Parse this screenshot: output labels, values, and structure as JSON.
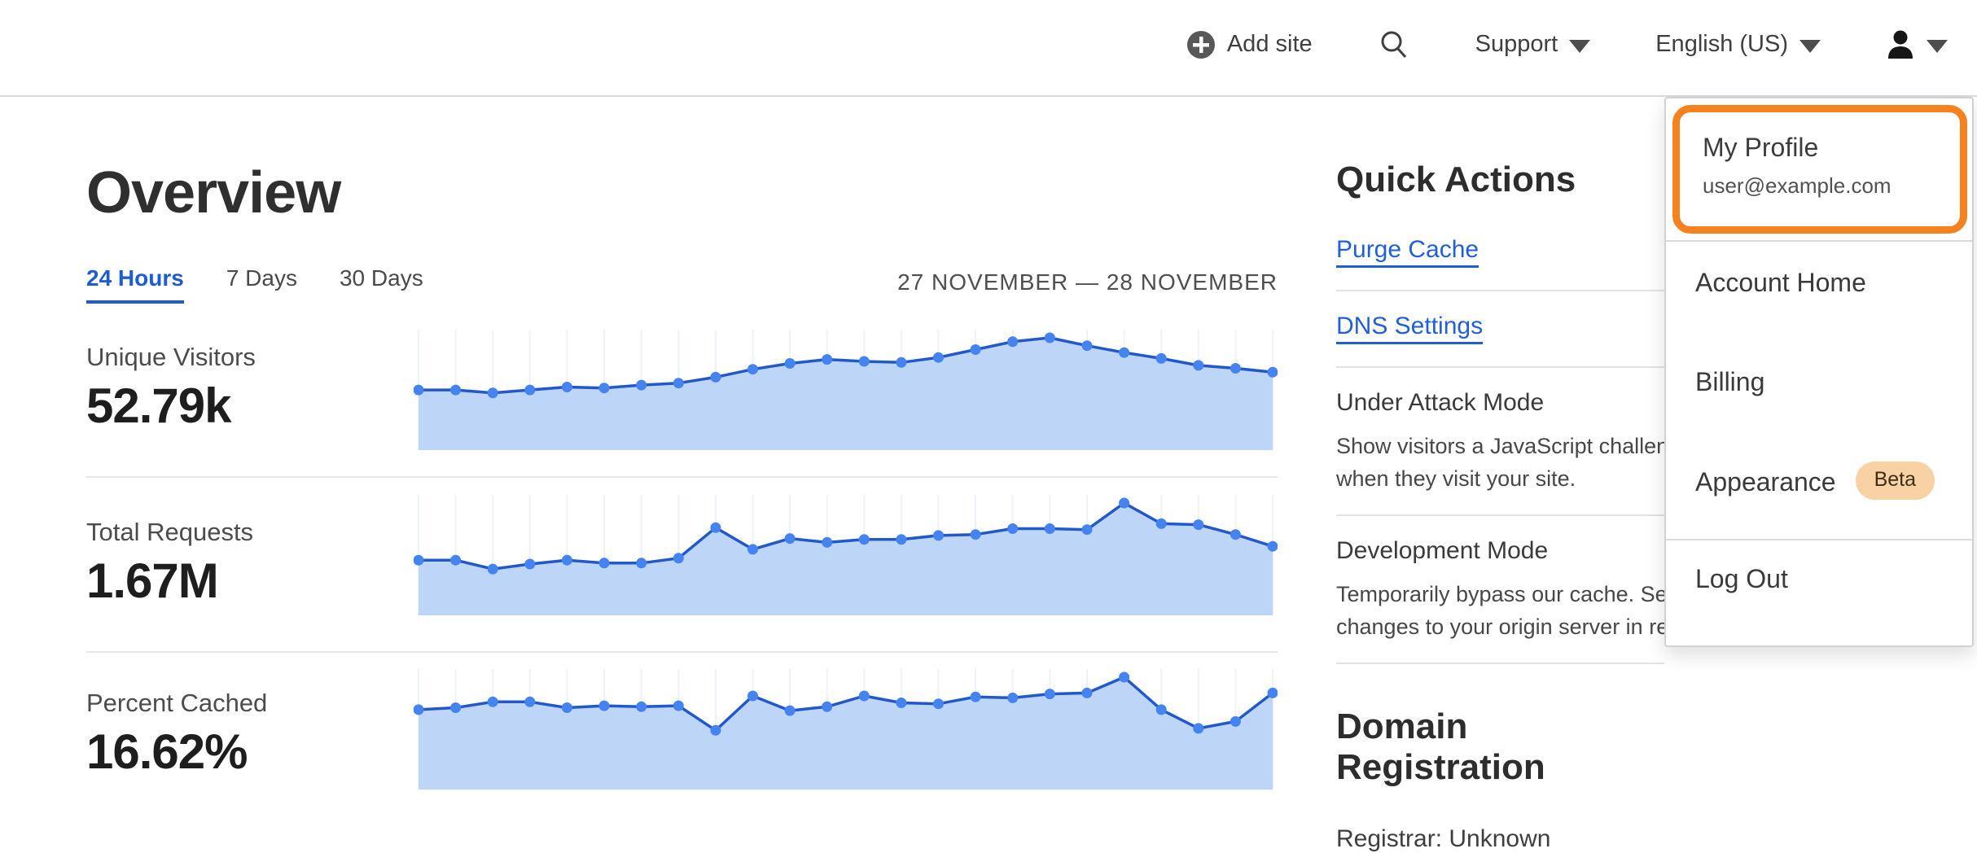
{
  "nav": {
    "add_site_label": "Add site",
    "support_label": "Support",
    "language_label": "English (US)"
  },
  "overview": {
    "title": "Overview",
    "tabs": [
      {
        "label": "24 Hours",
        "active": true
      },
      {
        "label": "7 Days",
        "active": false
      },
      {
        "label": "30 Days",
        "active": false
      }
    ],
    "date_range": "27 NOVEMBER — 28 NOVEMBER"
  },
  "metrics": [
    {
      "label": "Unique Visitors",
      "value": "52.79k"
    },
    {
      "label": "Total Requests",
      "value": "1.67M"
    },
    {
      "label": "Percent Cached",
      "value": "16.62%"
    }
  ],
  "chart_data": [
    {
      "type": "area",
      "title": "Unique Visitors (24 Hours)",
      "summary_value": "52.79k",
      "x_range": "27 November – 28 November, hourly",
      "ylabel": "visitors (unlabeled axis, normalized 0–1 of peak)",
      "points_norm": [
        0.47,
        0.47,
        0.44,
        0.47,
        0.5,
        0.49,
        0.52,
        0.54,
        0.6,
        0.68,
        0.74,
        0.78,
        0.76,
        0.75,
        0.8,
        0.88,
        0.96,
        1.0,
        0.92,
        0.85,
        0.79,
        0.72,
        0.69,
        0.65
      ],
      "grid": "vertical-per-point"
    },
    {
      "type": "area",
      "title": "Total Requests (24 Hours)",
      "summary_value": "1.67M",
      "x_range": "27 November – 28 November, hourly",
      "ylabel": "requests (unlabeled axis, normalized 0–1 of peak)",
      "points_norm": [
        0.42,
        0.42,
        0.33,
        0.38,
        0.42,
        0.39,
        0.39,
        0.44,
        0.75,
        0.53,
        0.64,
        0.6,
        0.63,
        0.63,
        0.67,
        0.68,
        0.74,
        0.74,
        0.73,
        1.0,
        0.79,
        0.78,
        0.68,
        0.56
      ],
      "grid": "vertical-per-point"
    },
    {
      "type": "area",
      "title": "Percent Cached (24 Hours)",
      "summary_value": "16.62%",
      "x_range": "27 November – 28 November, hourly",
      "ylabel": "percent cached (unlabeled axis, normalized 0–1 of peak)",
      "points_norm": [
        0.67,
        0.69,
        0.75,
        0.75,
        0.69,
        0.71,
        0.7,
        0.71,
        0.46,
        0.81,
        0.66,
        0.7,
        0.81,
        0.74,
        0.73,
        0.8,
        0.79,
        0.83,
        0.84,
        1.0,
        0.67,
        0.48,
        0.55,
        0.84
      ],
      "grid": "vertical-per-point"
    }
  ],
  "quick_actions": {
    "title": "Quick Actions",
    "links": [
      {
        "label": "Purge Cache"
      },
      {
        "label": "DNS Settings"
      }
    ],
    "toggles": [
      {
        "label": "Under Attack Mode",
        "description_lines": [
          "Show visitors a JavaScript challenge",
          "when they visit your site."
        ]
      },
      {
        "label": "Development Mode",
        "description_lines": [
          "Temporarily bypass our cache. See",
          "changes to your origin server in real time."
        ]
      }
    ]
  },
  "domain_registration": {
    "title": "Domain Registration",
    "registrar_line": "Registrar: Unknown"
  },
  "account_menu": {
    "items": [
      {
        "label": "My Profile",
        "sublabel": "user@example.com",
        "highlighted": true
      },
      {
        "label": "Account Home"
      },
      {
        "label": "Billing"
      },
      {
        "label": "Appearance",
        "badge": "Beta"
      },
      {
        "label": "Log Out"
      }
    ]
  },
  "colors": {
    "accent_orange": "#f6821f",
    "link_blue": "#2160d4",
    "tab_active_blue": "#1d5cd6",
    "chart_line": "#2358cb",
    "chart_dot": "#4583f0",
    "chart_fill": "#bdd6f8",
    "chart_grid": "#eff2f7",
    "beta_badge_bg": "#f8d1a4"
  }
}
